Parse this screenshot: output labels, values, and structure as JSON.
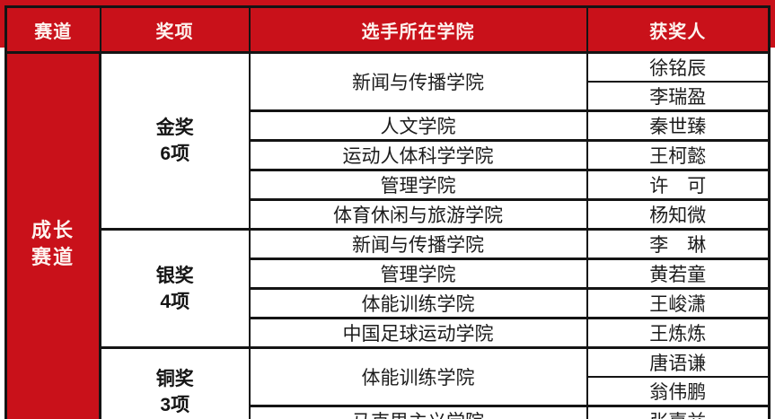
{
  "colors": {
    "accent_red": "#c9111a",
    "border_black": "#141414",
    "header_text": "#fdf3ef",
    "body_text": "#1c1c1c",
    "background": "#ffffff"
  },
  "table": {
    "headers": [
      "赛道",
      "奖项",
      "选手所在学院",
      "获奖人"
    ],
    "track": {
      "lines": [
        "成长",
        "赛道"
      ]
    },
    "groups": [
      {
        "award": "金奖",
        "count": "6项",
        "colleges": [
          {
            "name": "新闻与传播学院",
            "winners": [
              "徐铭辰",
              "李瑞盈"
            ]
          },
          {
            "name": "人文学院",
            "winners": [
              "秦世臻"
            ]
          },
          {
            "name": "运动人体科学学院",
            "winners": [
              "王柯懿"
            ]
          },
          {
            "name": "管理学院",
            "winners": [
              "许　可"
            ]
          },
          {
            "name": "体育休闲与旅游学院",
            "winners": [
              "杨知微"
            ]
          }
        ]
      },
      {
        "award": "银奖",
        "count": "4项",
        "colleges": [
          {
            "name": "新闻与传播学院",
            "winners": [
              "李　琳"
            ]
          },
          {
            "name": "管理学院",
            "winners": [
              "黄若童"
            ]
          },
          {
            "name": "体能训练学院",
            "winners": [
              "王峻潇"
            ]
          },
          {
            "name": "中国足球运动学院",
            "winners": [
              "王炼炼"
            ]
          }
        ]
      },
      {
        "award": "铜奖",
        "count": "3项",
        "colleges": [
          {
            "name": "体能训练学院",
            "winners": [
              "唐语谦",
              "翁伟鹏"
            ]
          },
          {
            "name": "马克思主义学院",
            "winners": [
              "张嘉益"
            ]
          }
        ]
      }
    ]
  }
}
